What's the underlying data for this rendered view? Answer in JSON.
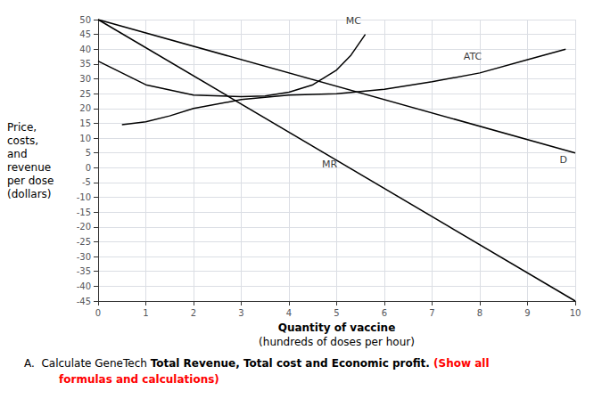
{
  "chart_data": {
    "type": "line",
    "x_label": [
      "Quantity of vaccine",
      "(hundreds of doses per hour)"
    ],
    "y_label": [
      "Price,",
      "costs,",
      "and",
      "revenue",
      "per dose",
      "(dollars)"
    ],
    "xlim": [
      0,
      10
    ],
    "ylim": [
      -45,
      50
    ],
    "xticks": [
      0,
      1,
      2,
      3,
      4,
      5,
      6,
      7,
      8,
      9,
      10
    ],
    "yticks": [
      -45,
      -40,
      -35,
      -30,
      -25,
      -20,
      -15,
      -10,
      -5,
      0,
      5,
      10,
      15,
      20,
      25,
      30,
      35,
      40,
      45,
      50
    ],
    "grid": true,
    "color": "#000000",
    "series": [
      {
        "name": "D",
        "x": [
          0,
          10
        ],
        "values": [
          50,
          5
        ]
      },
      {
        "name": "MR",
        "x": [
          0,
          10
        ],
        "values": [
          50,
          -45
        ]
      },
      {
        "name": "MC",
        "x": [
          0.0,
          1.0,
          2.0,
          3.0,
          3.5,
          4.0,
          4.5,
          5.0,
          5.3,
          5.6
        ],
        "values": [
          36.0,
          28.0,
          24.5,
          24.0,
          24.2,
          25.5,
          28.0,
          33.0,
          38.0,
          45.0
        ]
      },
      {
        "name": "ATC",
        "x": [
          0.5,
          1.0,
          1.5,
          2.0,
          3.0,
          4.0,
          5.0,
          6.0,
          7.0,
          8.0,
          9.0,
          9.8
        ],
        "values": [
          14.5,
          15.5,
          17.5,
          20.0,
          23.0,
          24.5,
          25.0,
          26.5,
          29.0,
          32.0,
          36.5,
          40.0
        ]
      }
    ],
    "annotations": [
      {
        "text": "MC",
        "x": 5.35,
        "y": 49.5
      },
      {
        "text": "ATC",
        "x": 7.85,
        "y": 37.5
      },
      {
        "text": "MR",
        "x": 4.85,
        "y": 1.2
      },
      {
        "text": "D",
        "x": 9.75,
        "y": 2.8
      }
    ],
    "caption": [
      [
        {
          "text": "A.  Calculate GeneTech "
        },
        {
          "text": "Total Revenue, Total cost and Economic profit.",
          "weight": "bold"
        },
        {
          "text": " (Show all",
          "weight": "bold",
          "color": "red"
        }
      ],
      [
        {
          "text": "formulas and calculations)",
          "weight": "bold",
          "color": "red"
        }
      ]
    ]
  }
}
